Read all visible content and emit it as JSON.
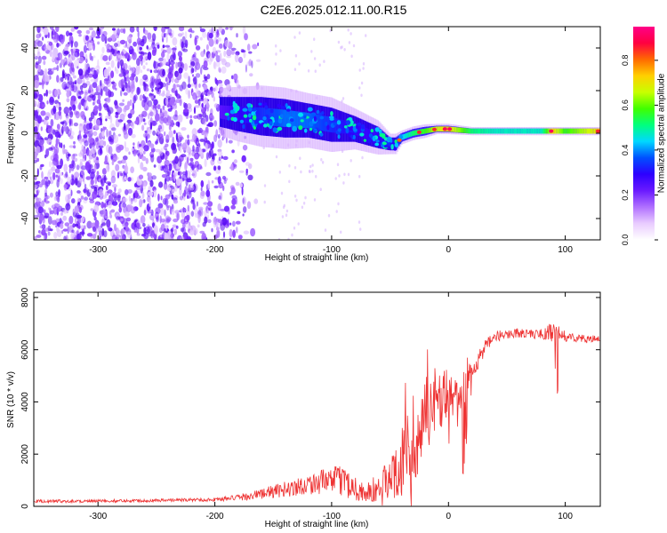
{
  "title": "C2E6.2025.012.11.00.R15",
  "colors": {
    "line": "#ee3333",
    "colormap": [
      "#ffffff",
      "#e9ccff",
      "#b070ff",
      "#6a1aff",
      "#2d00ff",
      "#0050ff",
      "#00d8ff",
      "#00ff7f",
      "#40ff00",
      "#c8ff00",
      "#ffd000",
      "#ff6a00",
      "#ff0040",
      "#ff0088"
    ]
  },
  "chart_data": [
    {
      "type": "heatmap",
      "xlabel": "Height of straight line (km)",
      "ylabel": "Frequency (Hz)",
      "xlim": [
        -355,
        130
      ],
      "ylim": [
        -50,
        50
      ],
      "xticks": [
        -300,
        -200,
        -100,
        0,
        100
      ],
      "xtick_labels": [
        "-300",
        "-200",
        "-100",
        "0",
        "100"
      ],
      "yticks": [
        -40,
        -20,
        0,
        20,
        40
      ],
      "ytick_labels": [
        "-40",
        "-20",
        "0",
        "20",
        "40"
      ],
      "ridge": {
        "x": [
          -195,
          -180,
          -160,
          -140,
          -120,
          -100,
          -80,
          -60,
          -50,
          -45,
          -40,
          -30,
          -20,
          -10,
          0,
          20,
          40,
          60,
          80,
          90,
          100,
          130
        ],
        "freq": [
          10,
          9,
          8,
          7,
          6,
          4,
          2,
          -2,
          -5,
          -5,
          -2,
          0,
          1,
          2,
          2,
          1,
          1,
          1,
          1,
          1,
          1,
          1
        ],
        "halfwidth": [
          7,
          8,
          9,
          9,
          8,
          8,
          6,
          5,
          3,
          3,
          2,
          2,
          2,
          1.5,
          1.5,
          1.2,
          1.2,
          1.2,
          1.2,
          1.2,
          1.2,
          1.2
        ],
        "amplitude": [
          0.25,
          0.3,
          0.35,
          0.4,
          0.4,
          0.35,
          0.3,
          0.3,
          0.35,
          0.35,
          0.45,
          0.55,
          0.6,
          0.7,
          0.75,
          0.55,
          0.5,
          0.5,
          0.5,
          0.75,
          0.6,
          0.75
        ]
      },
      "colorbar": {
        "label": "Normalized spectral amplitude",
        "range": [
          0,
          0.95
        ],
        "ticks": [
          0.0,
          0.2,
          0.4,
          0.6,
          0.8
        ],
        "tick_labels": [
          "0.0",
          "0.2",
          "0.4",
          "0.6",
          "0.8"
        ]
      }
    },
    {
      "type": "line",
      "xlabel": "Height of straight line (km)",
      "ylabel": "SNR (10 * v/v)",
      "xlim": [
        -355,
        130
      ],
      "ylim": [
        0,
        8200
      ],
      "xticks": [
        -300,
        -200,
        -100,
        0,
        100
      ],
      "xtick_labels": [
        "-300",
        "-200",
        "-100",
        "0",
        "100"
      ],
      "yticks": [
        0,
        2000,
        4000,
        6000,
        8000
      ],
      "ytick_labels": [
        "0",
        "2000",
        "4000",
        "6000",
        "8000"
      ],
      "series": [
        {
          "x": [
            -355,
            -300,
            -250,
            -200,
            -180,
            -160,
            -140,
            -120,
            -100,
            -90,
            -80,
            -70,
            -60,
            -50,
            -45,
            -40,
            -35,
            -30,
            -25,
            -20,
            -15,
            -10,
            -5,
            0,
            5,
            10,
            15,
            20,
            25,
            30,
            40,
            50,
            60,
            70,
            80,
            85,
            90,
            92,
            95,
            100,
            110,
            120,
            130
          ],
          "y": [
            200,
            200,
            230,
            260,
            330,
            480,
            650,
            850,
            1000,
            1000,
            700,
            500,
            600,
            1000,
            1500,
            1700,
            1900,
            1600,
            2500,
            3500,
            3900,
            4000,
            4000,
            4200,
            4300,
            4200,
            4500,
            5200,
            5600,
            6000,
            6500,
            6600,
            6650,
            6600,
            6600,
            6650,
            6650,
            6500,
            6600,
            6500,
            6450,
            6400,
            6400
          ],
          "noise": [
            60,
            60,
            60,
            70,
            120,
            200,
            300,
            400,
            500,
            600,
            500,
            400,
            700,
            900,
            1200,
            1300,
            1400,
            1200,
            1500,
            1500,
            1400,
            1200,
            1000,
            900,
            700,
            700,
            600,
            500,
            400,
            300,
            200,
            200,
            180,
            180,
            200,
            300,
            400,
            500,
            300,
            200,
            150,
            150,
            150
          ]
        }
      ]
    }
  ]
}
